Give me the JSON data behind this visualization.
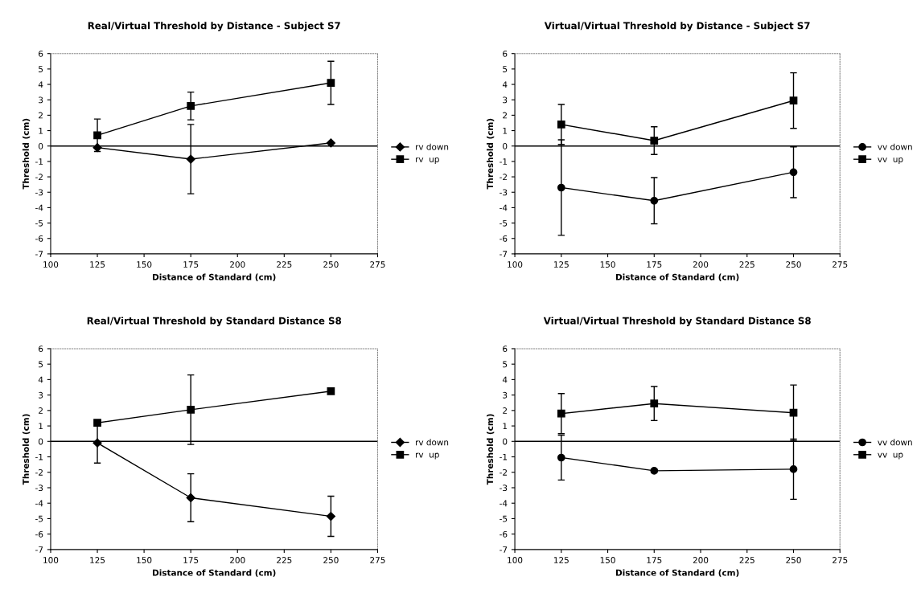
{
  "chart_data": [
    {
      "type": "line",
      "title": "Real/Virtual Threshold by Distance - Subject S7",
      "xlabel": "Distance of Standard (cm)",
      "ylabel": "Threshold (cm)",
      "x": [
        125,
        175,
        250
      ],
      "xlim": [
        100,
        275
      ],
      "xticks": [
        100,
        125,
        150,
        175,
        200,
        225,
        250,
        275
      ],
      "ylim": [
        -7,
        6
      ],
      "yticks": [
        -7,
        -6,
        -5,
        -4,
        -3,
        -2,
        -1,
        0,
        1,
        2,
        3,
        4,
        5,
        6
      ],
      "grid": false,
      "legend": "right",
      "ref_lines": [
        {
          "axis": "y",
          "value": 0,
          "color": "#000000",
          "line_style": "solid"
        }
      ],
      "series": [
        {
          "name": "rv down",
          "color": "#000000",
          "marker": "diamond",
          "values": [
            -0.1,
            -0.85,
            0.2
          ],
          "errors": [
            null,
            2.25,
            null
          ]
        },
        {
          "name": "rv  up",
          "color": "#000000",
          "marker": "square",
          "values": [
            0.7,
            2.6,
            4.1
          ],
          "errors": [
            1.05,
            0.9,
            1.4
          ]
        }
      ]
    },
    {
      "type": "line",
      "title": "Virtual/Virtual Threshold by Distance - Subject S7",
      "xlabel": "Distance of Standard (cm)",
      "ylabel": "Threshold (cm)",
      "x": [
        125,
        175,
        250
      ],
      "xlim": [
        100,
        275
      ],
      "xticks": [
        100,
        125,
        150,
        175,
        200,
        225,
        250,
        275
      ],
      "ylim": [
        -7,
        6
      ],
      "yticks": [
        -7,
        -6,
        -5,
        -4,
        -3,
        -2,
        -1,
        0,
        1,
        2,
        3,
        4,
        5,
        6
      ],
      "grid": false,
      "legend": "right",
      "ref_lines": [
        {
          "axis": "y",
          "value": 0,
          "color": "#000000",
          "line_style": "solid"
        }
      ],
      "series": [
        {
          "name": "vv down",
          "color": "#000000",
          "marker": "circle",
          "values": [
            -2.7,
            -3.55,
            -1.7
          ],
          "errors": [
            3.1,
            1.5,
            1.65
          ]
        },
        {
          "name": "vv  up",
          "color": "#000000",
          "marker": "square",
          "values": [
            1.4,
            0.35,
            2.95
          ],
          "errors": [
            1.3,
            0.9,
            1.8
          ]
        }
      ]
    },
    {
      "type": "line",
      "title": "Real/Virtual Threshold by Standard Distance S8",
      "xlabel": "Distance of Standard (cm)",
      "ylabel": "Threshold (cm)",
      "x": [
        125,
        175,
        250
      ],
      "xlim": [
        100,
        275
      ],
      "xticks": [
        100,
        125,
        150,
        175,
        200,
        225,
        250,
        275
      ],
      "ylim": [
        -7,
        6
      ],
      "yticks": [
        -7,
        -6,
        -5,
        -4,
        -3,
        -2,
        -1,
        0,
        1,
        2,
        3,
        4,
        5,
        6
      ],
      "grid": false,
      "legend": "right",
      "ref_lines": [
        {
          "axis": "y",
          "value": 0,
          "color": "#000000",
          "line_style": "solid"
        }
      ],
      "series": [
        {
          "name": "rv down",
          "color": "#000000",
          "marker": "diamond",
          "values": [
            -0.1,
            -3.65,
            -4.85
          ],
          "errors": [
            1.3,
            1.55,
            1.3
          ]
        },
        {
          "name": "rv  up",
          "color": "#000000",
          "marker": "square",
          "values": [
            1.2,
            2.05,
            3.25
          ],
          "errors": [
            null,
            2.25,
            null
          ]
        }
      ]
    },
    {
      "type": "line",
      "title": "Virtual/Virtual Threshold by Standard Distance S8",
      "xlabel": "Distance of Standard (cm)",
      "ylabel": "Threshold (cm)",
      "x": [
        125,
        175,
        250
      ],
      "xlim": [
        100,
        275
      ],
      "xticks": [
        100,
        125,
        150,
        175,
        200,
        225,
        250,
        275
      ],
      "ylim": [
        -7,
        6
      ],
      "yticks": [
        -7,
        -6,
        -5,
        -4,
        -3,
        -2,
        -1,
        0,
        1,
        2,
        3,
        4,
        5,
        6
      ],
      "grid": false,
      "legend": "right",
      "ref_lines": [
        {
          "axis": "y",
          "value": 0,
          "color": "#000000",
          "line_style": "solid"
        }
      ],
      "series": [
        {
          "name": "vv down",
          "color": "#000000",
          "marker": "circle",
          "values": [
            -1.05,
            -1.9,
            -1.8
          ],
          "errors": [
            1.45,
            0.1,
            1.95
          ]
        },
        {
          "name": "vv  up",
          "color": "#000000",
          "marker": "square",
          "values": [
            1.8,
            2.45,
            1.85
          ],
          "errors": [
            1.3,
            1.1,
            1.8
          ]
        }
      ]
    }
  ]
}
